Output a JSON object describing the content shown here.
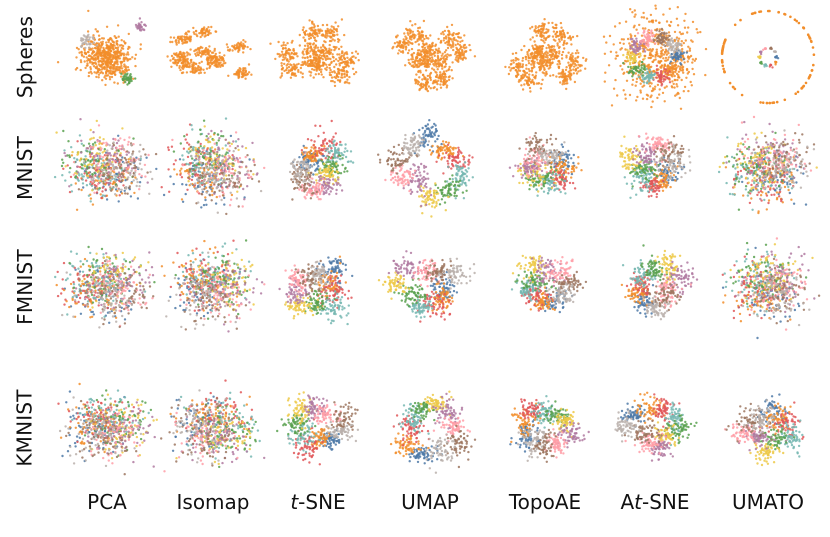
{
  "chart_data": {
    "type": "scatter",
    "title": "",
    "rows": [
      "Spheres",
      "MNIST",
      "FMNIST",
      "KMNIST"
    ],
    "columns": [
      "PCA",
      "Isomap",
      "t-SNE",
      "UMAP",
      "TopoAE",
      "At-SNE",
      "UMATO"
    ],
    "column_label_parts": [
      [
        {
          "t": "PCA",
          "it": false
        }
      ],
      [
        {
          "t": "Isomap",
          "it": false
        }
      ],
      [
        {
          "t": "t",
          "it": true
        },
        {
          "t": "-SNE",
          "it": false
        }
      ],
      [
        {
          "t": "UMAP",
          "it": false
        }
      ],
      [
        {
          "t": "TopoAE",
          "it": false
        }
      ],
      [
        {
          "t": "A",
          "it": false
        },
        {
          "t": "t",
          "it": true
        },
        {
          "t": "-SNE",
          "it": false
        }
      ],
      [
        {
          "t": "UMATO",
          "it": false
        }
      ]
    ],
    "class_colors": [
      "#4e79a7",
      "#f28e2b",
      "#e15759",
      "#76b7b2",
      "#59a14f",
      "#edc948",
      "#b07aa1",
      "#ff9da7",
      "#9c755f",
      "#bab0ac"
    ],
    "spheres_outer_color": "#f28e2b",
    "axes": "none",
    "grid": false,
    "legend": "none"
  }
}
